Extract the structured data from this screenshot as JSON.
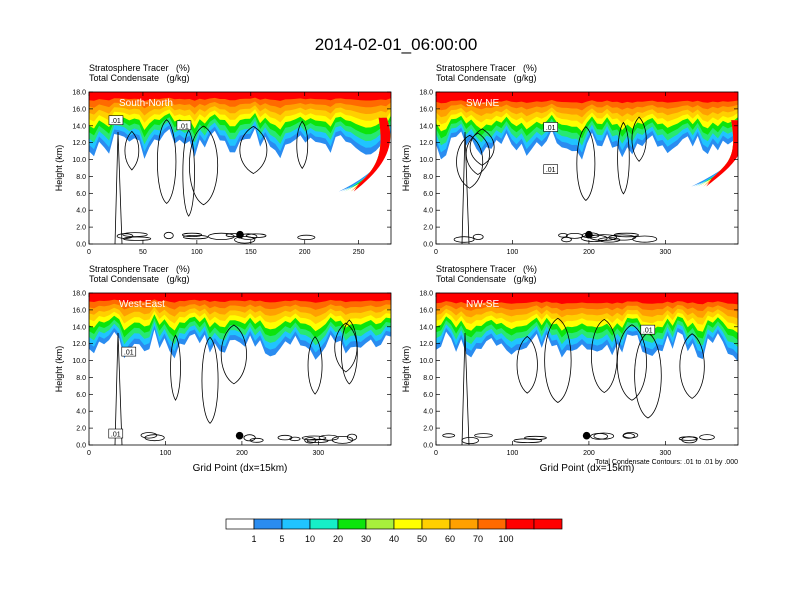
{
  "title": "2014-02-01_06:00:00",
  "footnote": "Total Condensate Contours: .01 to .01 by .000",
  "colorbar": {
    "labels": [
      "1",
      "5",
      "10",
      "20",
      "30",
      "40",
      "50",
      "60",
      "70",
      "100"
    ],
    "colors": [
      "#ffffff",
      "#2a8cf0",
      "#20c4ff",
      "#16efc8",
      "#27e873",
      "#0ce40c",
      "#a8f03c",
      "#ffff00",
      "#ffcf00",
      "#ffa000",
      "#ff6a00",
      "#ff0000"
    ]
  },
  "chart_data": [
    {
      "type": "heatmap",
      "title": "Stratosphere Tracer   (%)",
      "subtitle": "Total Condensate   (g/kg)",
      "panel_label": "South-North",
      "ylabel": "Height (km)",
      "xlabel": "",
      "xlim": [
        0,
        280
      ],
      "ylim": [
        0,
        18
      ],
      "xticks": [
        0,
        50,
        100,
        150,
        200,
        250
      ],
      "yticks": [
        "0.0",
        "2.0",
        "4.0",
        "6.0",
        "8.0",
        "10.0",
        "12.0",
        "14.0",
        "16.0",
        "18.0"
      ],
      "contour_labels": [
        {
          "text": ".01",
          "x": 25,
          "y": 14.6
        },
        {
          "text": ".01",
          "x": 88,
          "y": 14.0
        }
      ],
      "marker": {
        "x": 140,
        "y": 1.1
      },
      "plume": {
        "base_km": 15.9,
        "tilt_x": 250,
        "tilt_bottom_km": 6.2
      }
    },
    {
      "type": "heatmap",
      "title": "Stratosphere Tracer   (%)",
      "subtitle": "Total Condensate   (g/kg)",
      "panel_label": "SW-NE",
      "ylabel": "Height (km)",
      "xlabel": "",
      "xlim": [
        0,
        395
      ],
      "ylim": [
        0,
        18
      ],
      "xticks": [
        0,
        100,
        200,
        300
      ],
      "yticks": [
        "0.0",
        "2.0",
        "4.0",
        "6.0",
        "8.0",
        "10.0",
        "12.0",
        "14.0",
        "16.0",
        "18.0"
      ],
      "contour_labels": [
        {
          "text": ".01",
          "x": 150,
          "y": 13.8
        },
        {
          "text": ".01",
          "x": 150,
          "y": 8.8
        }
      ],
      "marker": {
        "x": 200,
        "y": 1.1
      },
      "plume": {
        "base_km": 15.6,
        "tilt_x": 360,
        "tilt_bottom_km": 6.8
      }
    },
    {
      "type": "heatmap",
      "title": "Stratosphere Tracer   (%)",
      "subtitle": "Total Condensate   (g/kg)",
      "panel_label": "West-East",
      "ylabel": "Height (km)",
      "xlabel": "Grid Point (dx=15km)",
      "xlim": [
        0,
        395
      ],
      "ylim": [
        0,
        18
      ],
      "xticks": [
        0,
        100,
        200,
        300
      ],
      "yticks": [
        "0.0",
        "2.0",
        "4.0",
        "6.0",
        "8.0",
        "10.0",
        "12.0",
        "14.0",
        "16.0",
        "18.0"
      ],
      "contour_labels": [
        {
          "text": ".01",
          "x": 52,
          "y": 11.0
        },
        {
          "text": ".01",
          "x": 35,
          "y": 1.3
        }
      ],
      "marker": {
        "x": 197,
        "y": 1.1
      },
      "plume": {
        "base_km": 15.8,
        "tilt_x": null,
        "tilt_bottom_km": null
      }
    },
    {
      "type": "heatmap",
      "title": "Stratosphere Tracer   (%)",
      "subtitle": "Total Condensate   (g/kg)",
      "panel_label": "NW-SE",
      "ylabel": "Height (km)",
      "xlabel": "Grid Point (dx=15km)",
      "xlim": [
        0,
        395
      ],
      "ylim": [
        0,
        18
      ],
      "xticks": [
        0,
        100,
        200,
        300
      ],
      "yticks": [
        "0.0",
        "2.0",
        "4.0",
        "6.0",
        "8.0",
        "10.0",
        "12.0",
        "14.0",
        "16.0",
        "18.0"
      ],
      "contour_labels": [
        {
          "text": ".01",
          "x": 277,
          "y": 13.6
        }
      ],
      "marker": {
        "x": 197,
        "y": 1.1
      },
      "plume": {
        "base_km": 15.6,
        "tilt_x": null,
        "tilt_bottom_km": null
      }
    }
  ]
}
